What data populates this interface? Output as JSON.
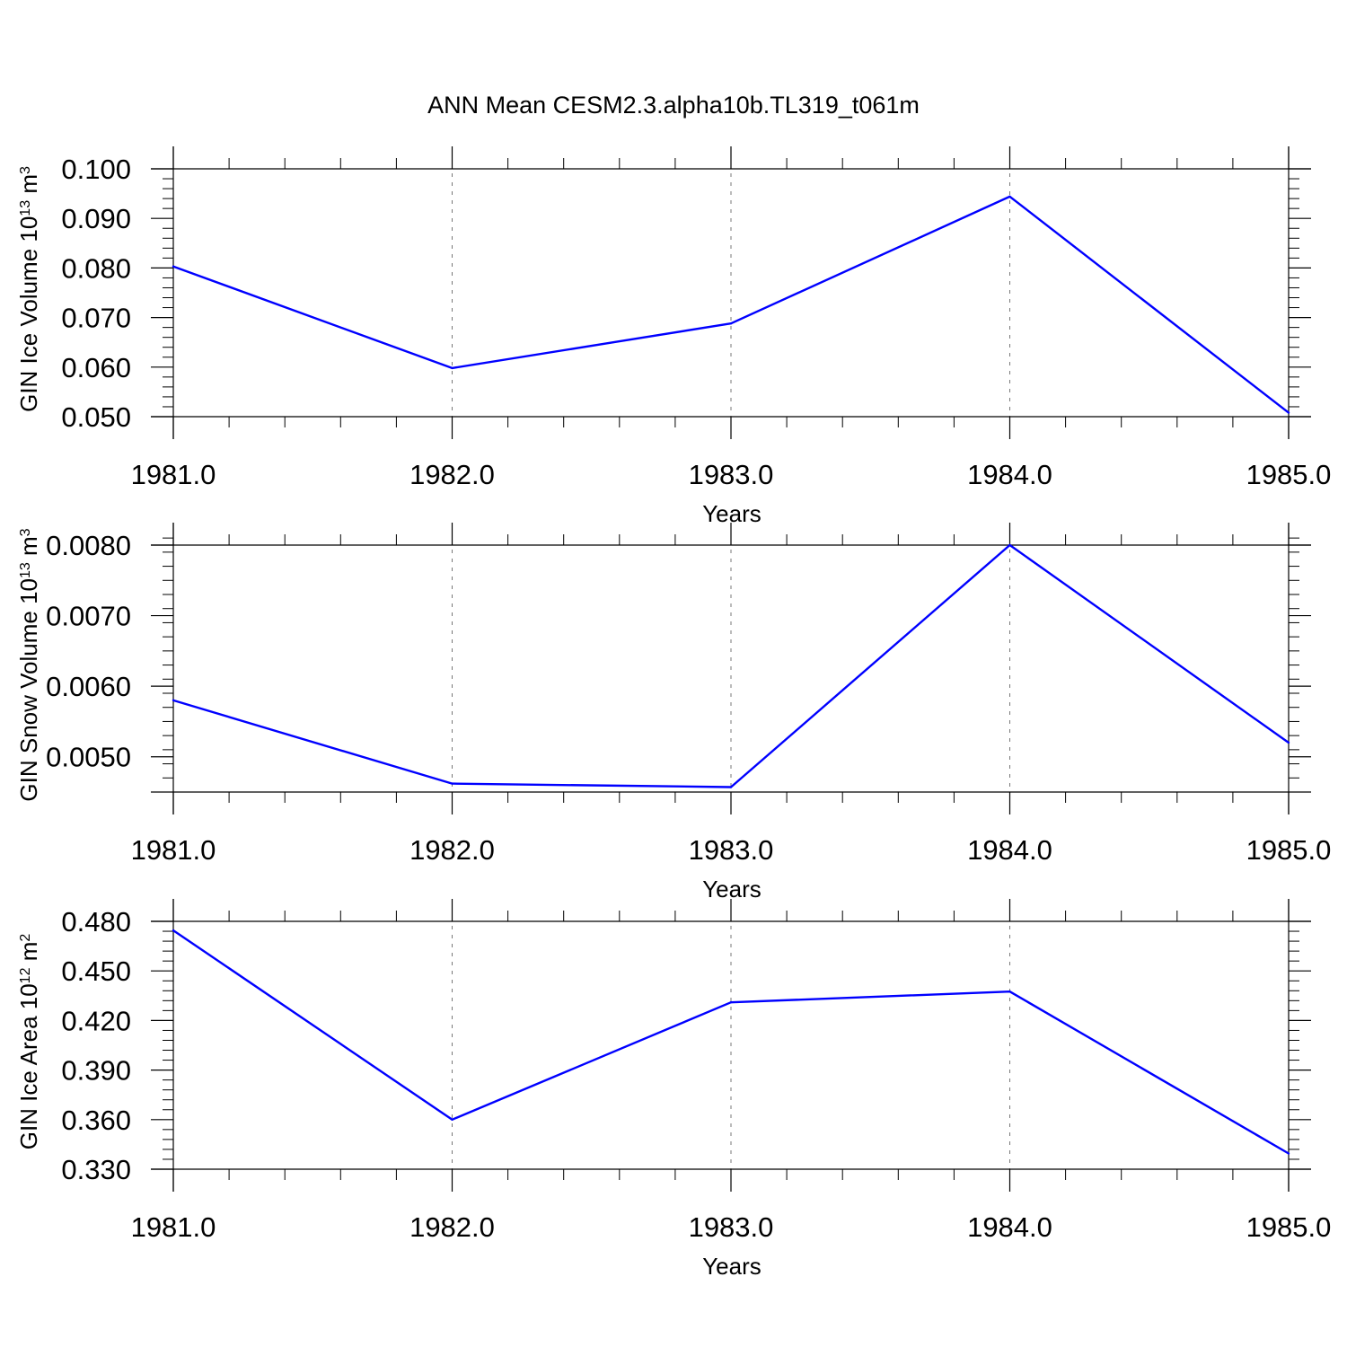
{
  "figure": {
    "title": "ANN Mean CESM2.3.alpha10b.TL319_t061m"
  },
  "chart_data": [
    {
      "type": "line",
      "x": [
        1981.0,
        1982.0,
        1983.0,
        1984.0,
        1985.0
      ],
      "values": [
        0.0803,
        0.0598,
        0.0688,
        0.0944,
        0.0508
      ],
      "xlabel": "Years",
      "ylabel": {
        "text": "GIN Ice Volume 10",
        "exp": "13",
        "unit": " m",
        "unit_exp": "3"
      },
      "xlim": [
        1981.0,
        1985.0
      ],
      "ylim": [
        0.05,
        0.1
      ],
      "xticks": [
        1981.0,
        1982.0,
        1983.0,
        1984.0,
        1985.0
      ],
      "xtick_labels": [
        "1981.0",
        "1982.0",
        "1983.0",
        "1984.0",
        "1985.0"
      ],
      "yticks": [
        0.05,
        0.06,
        0.07,
        0.08,
        0.09,
        0.1
      ],
      "ytick_labels": [
        "0.050",
        "0.060",
        "0.070",
        "0.080",
        "0.090",
        "0.100"
      ],
      "ymin_step": 0.002,
      "grid": "vertical dashed at major x ticks",
      "line_color": "#0000ff"
    },
    {
      "type": "line",
      "x": [
        1981.0,
        1982.0,
        1983.0,
        1984.0,
        1985.0
      ],
      "values": [
        0.0058,
        0.00462,
        0.00457,
        0.008,
        0.0052
      ],
      "xlabel": "Years",
      "ylabel": {
        "text": "GIN Snow Volume 10",
        "exp": "13",
        "unit": " m",
        "unit_exp": "3"
      },
      "xlim": [
        1981.0,
        1985.0
      ],
      "ylim": [
        0.0045,
        0.008
      ],
      "xticks": [
        1981.0,
        1982.0,
        1983.0,
        1984.0,
        1985.0
      ],
      "xtick_labels": [
        "1981.0",
        "1982.0",
        "1983.0",
        "1984.0",
        "1985.0"
      ],
      "yticks": [
        0.005,
        0.006,
        0.007,
        0.008
      ],
      "ytick_labels": [
        "0.0050",
        "0.0060",
        "0.0070",
        "0.0080"
      ],
      "ymin_step": 0.0002,
      "grid": "vertical dashed at major x ticks",
      "line_color": "#0000ff"
    },
    {
      "type": "line",
      "x": [
        1981.0,
        1982.0,
        1983.0,
        1984.0,
        1985.0
      ],
      "values": [
        0.4745,
        0.36,
        0.431,
        0.4375,
        0.3395
      ],
      "xlabel": "Years",
      "ylabel": {
        "text": "GIN Ice Area 10",
        "exp": "12",
        "unit": " m",
        "unit_exp": "2"
      },
      "xlim": [
        1981.0,
        1985.0
      ],
      "ylim": [
        0.33,
        0.48
      ],
      "xticks": [
        1981.0,
        1982.0,
        1983.0,
        1984.0,
        1985.0
      ],
      "xtick_labels": [
        "1981.0",
        "1982.0",
        "1983.0",
        "1984.0",
        "1985.0"
      ],
      "yticks": [
        0.33,
        0.36,
        0.39,
        0.42,
        0.45,
        0.48
      ],
      "ytick_labels": [
        "0.330",
        "0.360",
        "0.390",
        "0.420",
        "0.450",
        "0.480"
      ],
      "ymin_step": 0.006,
      "grid": "vertical dashed at major x ticks",
      "line_color": "#0000ff"
    }
  ]
}
